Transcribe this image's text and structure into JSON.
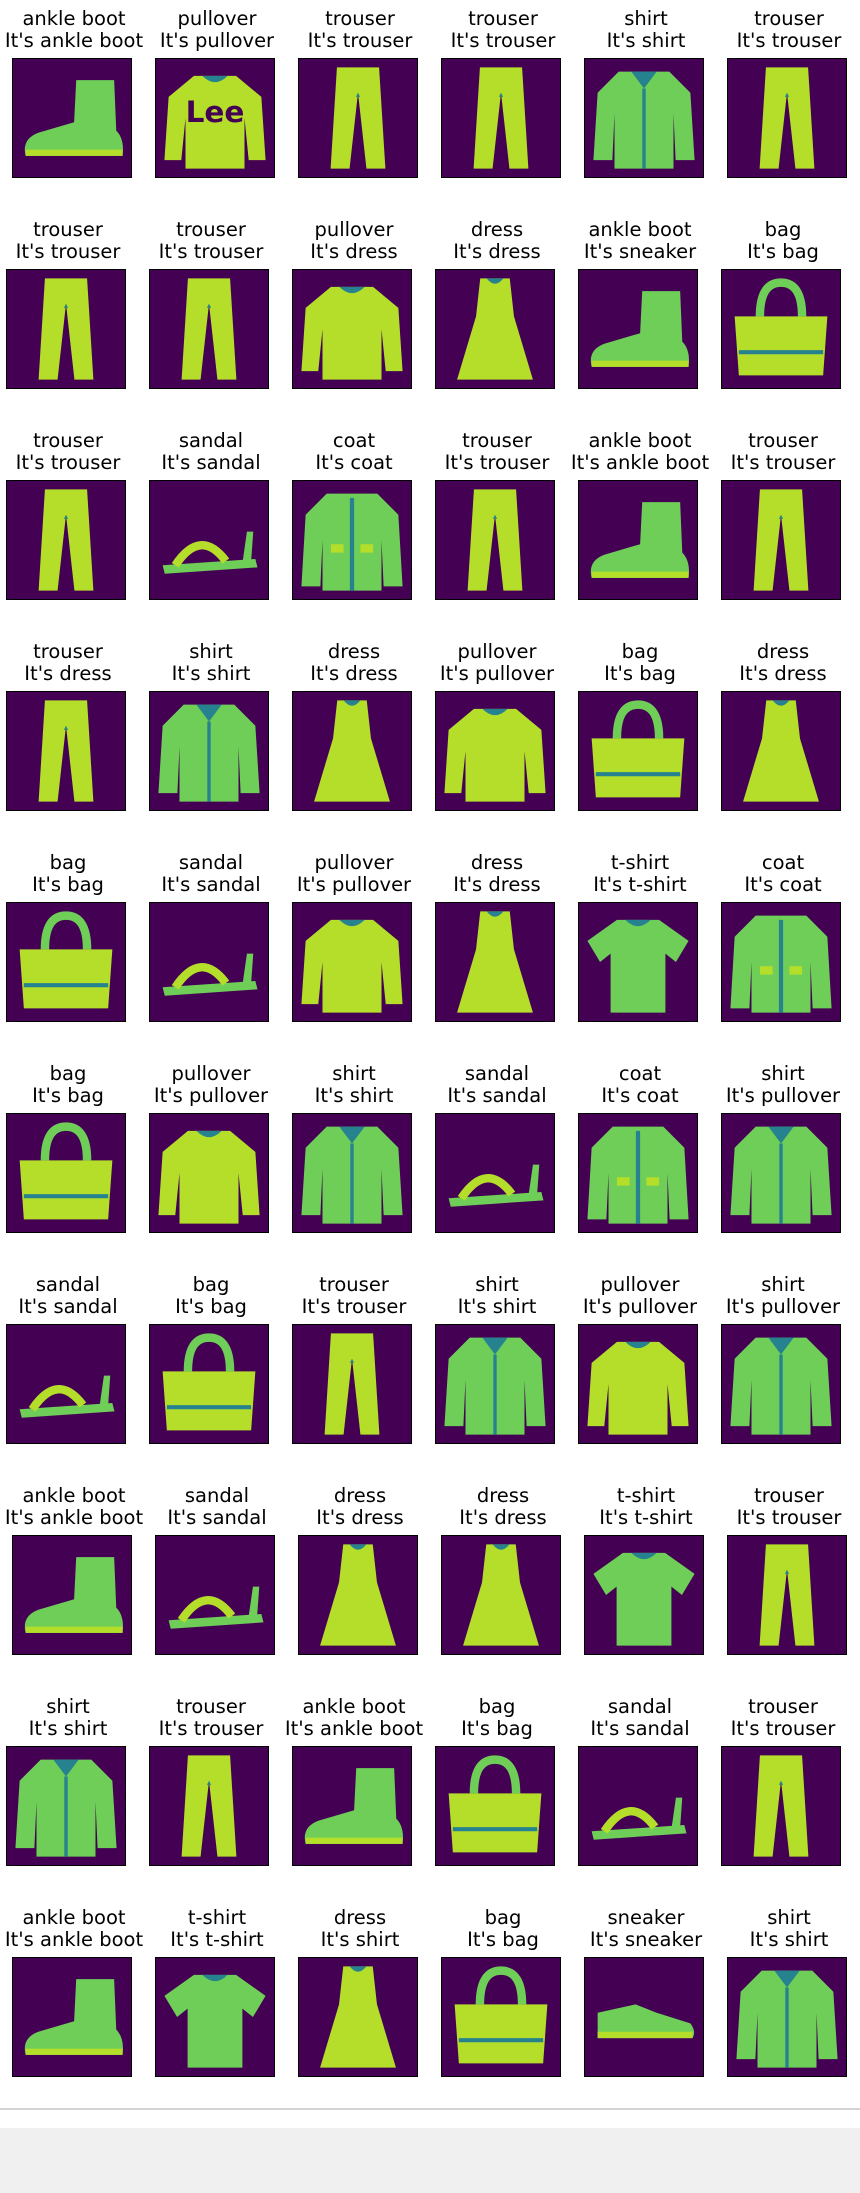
{
  "colors": {
    "background_dark": "#440154",
    "item_bright": "#b5de2b",
    "item_mid": "#6ece58",
    "item_teal": "#26828e",
    "border": "#000000"
  },
  "prediction_prefix": "It's ",
  "rows": [
    [
      {
        "true": "ankle boot",
        "pred": "It's ankle boot",
        "icon": "ankle-boot-icon"
      },
      {
        "true": "pullover",
        "pred": "It's pullover",
        "icon": "pullover-icon",
        "logo_text": "Lee"
      },
      {
        "true": "trouser",
        "pred": "It's trouser",
        "icon": "trouser-icon"
      },
      {
        "true": "trouser",
        "pred": "It's trouser",
        "icon": "trouser-icon"
      },
      {
        "true": "shirt",
        "pred": "It's shirt",
        "icon": "shirt-icon"
      },
      {
        "true": "trouser",
        "pred": "It's trouser",
        "icon": "trouser-icon"
      }
    ],
    [
      {
        "true": "trouser",
        "pred": "It's trouser",
        "icon": "trouser-icon"
      },
      {
        "true": "trouser",
        "pred": "It's trouser",
        "icon": "trouser-icon"
      },
      {
        "true": "pullover",
        "pred": "It's dress",
        "icon": "pullover-icon"
      },
      {
        "true": "dress",
        "pred": "It's dress",
        "icon": "dress-icon"
      },
      {
        "true": "ankle boot",
        "pred": "It's sneaker",
        "icon": "ankle-boot-icon"
      },
      {
        "true": "bag",
        "pred": "It's bag",
        "icon": "bag-icon"
      }
    ],
    [
      {
        "true": "trouser",
        "pred": "It's trouser",
        "icon": "trouser-icon"
      },
      {
        "true": "sandal",
        "pred": "It's sandal",
        "icon": "sandal-icon"
      },
      {
        "true": "coat",
        "pred": "It's coat",
        "icon": "coat-icon"
      },
      {
        "true": "trouser",
        "pred": "It's trouser",
        "icon": "trouser-icon"
      },
      {
        "true": "ankle boot",
        "pred": "It's ankle boot",
        "icon": "ankle-boot-icon"
      },
      {
        "true": "trouser",
        "pred": "It's trouser",
        "icon": "trouser-icon"
      }
    ],
    [
      {
        "true": "trouser",
        "pred": "It's dress",
        "icon": "trouser-icon"
      },
      {
        "true": "shirt",
        "pred": "It's shirt",
        "icon": "shirt-icon"
      },
      {
        "true": "dress",
        "pred": "It's dress",
        "icon": "dress-icon"
      },
      {
        "true": "pullover",
        "pred": "It's pullover",
        "icon": "pullover-icon"
      },
      {
        "true": "bag",
        "pred": "It's bag",
        "icon": "bag-icon"
      },
      {
        "true": "dress",
        "pred": "It's dress",
        "icon": "dress-icon"
      }
    ],
    [
      {
        "true": "bag",
        "pred": "It's bag",
        "icon": "bag-icon"
      },
      {
        "true": "sandal",
        "pred": "It's sandal",
        "icon": "sandal-icon"
      },
      {
        "true": "pullover",
        "pred": "It's pullover",
        "icon": "pullover-icon"
      },
      {
        "true": "dress",
        "pred": "It's dress",
        "icon": "dress-icon"
      },
      {
        "true": "t-shirt",
        "pred": "It's t-shirt",
        "icon": "t-shirt-icon"
      },
      {
        "true": "coat",
        "pred": "It's coat",
        "icon": "coat-icon"
      }
    ],
    [
      {
        "true": "bag",
        "pred": "It's bag",
        "icon": "bag-icon"
      },
      {
        "true": "pullover",
        "pred": "It's pullover",
        "icon": "pullover-icon"
      },
      {
        "true": "shirt",
        "pred": "It's shirt",
        "icon": "shirt-icon"
      },
      {
        "true": "sandal",
        "pred": "It's sandal",
        "icon": "sandal-icon"
      },
      {
        "true": "coat",
        "pred": "It's coat",
        "icon": "coat-icon"
      },
      {
        "true": "shirt",
        "pred": "It's pullover",
        "icon": "shirt-icon"
      }
    ],
    [
      {
        "true": "sandal",
        "pred": "It's sandal",
        "icon": "sandal-icon"
      },
      {
        "true": "bag",
        "pred": "It's bag",
        "icon": "bag-icon"
      },
      {
        "true": "trouser",
        "pred": "It's trouser",
        "icon": "trouser-icon"
      },
      {
        "true": "shirt",
        "pred": "It's shirt",
        "icon": "shirt-icon"
      },
      {
        "true": "pullover",
        "pred": "It's pullover",
        "icon": "pullover-icon"
      },
      {
        "true": "shirt",
        "pred": "It's pullover",
        "icon": "shirt-icon"
      }
    ],
    [
      {
        "true": "ankle boot",
        "pred": "It's ankle boot",
        "icon": "ankle-boot-icon"
      },
      {
        "true": "sandal",
        "pred": "It's sandal",
        "icon": "sandal-icon"
      },
      {
        "true": "dress",
        "pred": "It's dress",
        "icon": "dress-icon"
      },
      {
        "true": "dress",
        "pred": "It's dress",
        "icon": "dress-icon"
      },
      {
        "true": "t-shirt",
        "pred": "It's t-shirt",
        "icon": "t-shirt-icon"
      },
      {
        "true": "trouser",
        "pred": "It's trouser",
        "icon": "trouser-icon"
      }
    ],
    [
      {
        "true": "shirt",
        "pred": "It's shirt",
        "icon": "shirt-icon"
      },
      {
        "true": "trouser",
        "pred": "It's trouser",
        "icon": "trouser-icon"
      },
      {
        "true": "ankle boot",
        "pred": "It's ankle boot",
        "icon": "ankle-boot-icon"
      },
      {
        "true": "bag",
        "pred": "It's bag",
        "icon": "bag-icon"
      },
      {
        "true": "sandal",
        "pred": "It's sandal",
        "icon": "sandal-icon"
      },
      {
        "true": "trouser",
        "pred": "It's trouser",
        "icon": "trouser-icon"
      }
    ],
    [
      {
        "true": "ankle boot",
        "pred": "It's ankle boot",
        "icon": "ankle-boot-icon"
      },
      {
        "true": "t-shirt",
        "pred": "It's t-shirt",
        "icon": "t-shirt-icon"
      },
      {
        "true": "dress",
        "pred": "It's shirt",
        "icon": "dress-icon"
      },
      {
        "true": "bag",
        "pred": "It's bag",
        "icon": "bag-icon"
      },
      {
        "true": "sneaker",
        "pred": "It's sneaker",
        "icon": "sneaker-icon"
      },
      {
        "true": "shirt",
        "pred": "It's shirt",
        "icon": "shirt-icon"
      }
    ]
  ]
}
